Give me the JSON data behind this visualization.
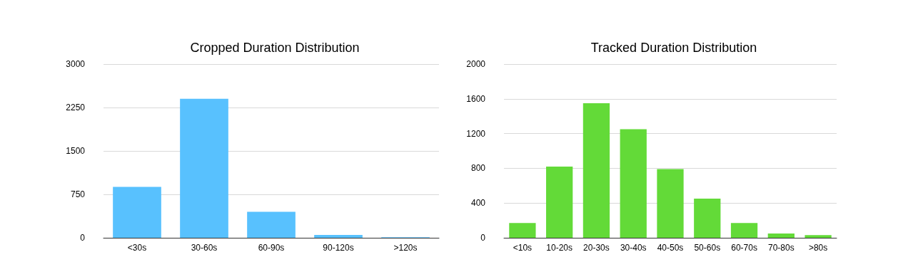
{
  "chart_data": [
    {
      "type": "bar",
      "title": "Cropped Duration Distribution",
      "categories": [
        "<30s",
        "30-60s",
        "60-90s",
        "90-120s",
        ">120s"
      ],
      "values": [
        880,
        2400,
        450,
        50,
        10
      ],
      "color": "#58c1fe",
      "ylim": [
        0,
        3000
      ],
      "yticks": [
        0,
        750,
        1500,
        2250,
        3000
      ],
      "grid": "y"
    },
    {
      "type": "bar",
      "title": "Tracked Duration Distribution",
      "categories": [
        "<10s",
        "10-20s",
        "20-30s",
        "30-40s",
        "40-50s",
        "50-60s",
        "60-70s",
        "70-80s",
        ">80s"
      ],
      "values": [
        170,
        820,
        1550,
        1250,
        790,
        450,
        170,
        50,
        30
      ],
      "color": "#63da38",
      "ylim": [
        0,
        2000
      ],
      "yticks": [
        0,
        400,
        800,
        1200,
        1600,
        2000
      ],
      "grid": "y"
    }
  ]
}
